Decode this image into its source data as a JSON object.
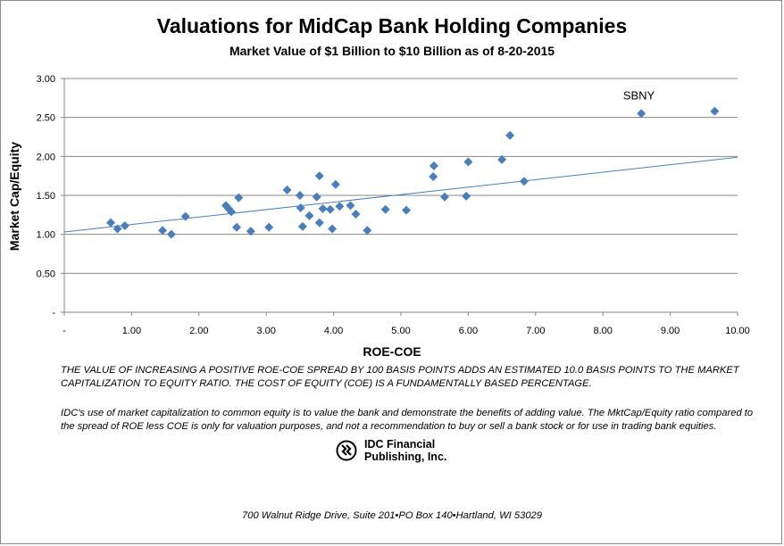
{
  "header": {
    "title": "Valuations for MidCap Bank Holding Companies",
    "subtitle": "Market Value of $1 Billion to $10 Billion as of 8-20-2015"
  },
  "notes": {
    "note1": "THE VALUE OF INCREASING A POSITIVE ROE-COE SPREAD BY 100 BASIS POINTS ADDS AN ESTIMATED 10.0 BASIS POINTS TO THE MARKET CAPITALIZATION TO EQUITY RATIO.  THE COST OF EQUITY (COE) IS A FUNDAMENTALLY BASED PERCENTAGE.",
    "note2": "IDC's use of market capitalization to common equity is to value the bank and demonstrate the benefits of adding value.  The MktCap/Equity ratio compared to the spread of ROE less COE is only for valuation purposes, and not a recommendation to buy or sell a bank stock or for use in trading bank equities."
  },
  "logo": {
    "line1": "IDC Financial",
    "line2": "Publishing, Inc."
  },
  "footer": {
    "address": "700 Walnut Ridge Drive, Suite 201•PO Box 140•Hartland, WI 53029"
  },
  "colors": {
    "marker": "#4a7ebb",
    "trendline": "#4a7ebb",
    "grid": "#868686",
    "axis_text": "#000000"
  },
  "chart_data": {
    "type": "scatter",
    "title": "Valuations for MidCap Bank Holding Companies",
    "subtitle": "Market Value of $1 Billion to $10 Billion as of 8-20-2015",
    "xlabel": "ROE-COE",
    "ylabel": "Market Cap/Equity",
    "xlim": [
      0,
      10
    ],
    "ylim": [
      0,
      3
    ],
    "x_ticks": [
      "-",
      "1.00",
      "2.00",
      "3.00",
      "4.00",
      "5.00",
      "6.00",
      "7.00",
      "8.00",
      "9.00",
      "10.00"
    ],
    "y_ticks": [
      "-",
      "0.50",
      "1.00",
      "1.50",
      "2.00",
      "2.50",
      "3.00"
    ],
    "grid": "horizontal",
    "legend": "none",
    "points": [
      {
        "x": 0.69,
        "y": 1.15
      },
      {
        "x": 0.79,
        "y": 1.07
      },
      {
        "x": 0.9,
        "y": 1.11
      },
      {
        "x": 1.46,
        "y": 1.05
      },
      {
        "x": 1.59,
        "y": 1.0
      },
      {
        "x": 1.8,
        "y": 1.23
      },
      {
        "x": 2.4,
        "y": 1.37
      },
      {
        "x": 2.44,
        "y": 1.33
      },
      {
        "x": 2.48,
        "y": 1.29
      },
      {
        "x": 2.56,
        "y": 1.09
      },
      {
        "x": 2.59,
        "y": 1.47
      },
      {
        "x": 2.77,
        "y": 1.04
      },
      {
        "x": 3.04,
        "y": 1.09
      },
      {
        "x": 3.31,
        "y": 1.57
      },
      {
        "x": 3.5,
        "y": 1.5
      },
      {
        "x": 3.51,
        "y": 1.34
      },
      {
        "x": 3.54,
        "y": 1.1
      },
      {
        "x": 3.64,
        "y": 1.24
      },
      {
        "x": 3.75,
        "y": 1.48
      },
      {
        "x": 3.79,
        "y": 1.75
      },
      {
        "x": 3.79,
        "y": 1.15
      },
      {
        "x": 3.84,
        "y": 1.33
      },
      {
        "x": 3.95,
        "y": 1.32
      },
      {
        "x": 3.98,
        "y": 1.07
      },
      {
        "x": 4.03,
        "y": 1.64
      },
      {
        "x": 4.09,
        "y": 1.36
      },
      {
        "x": 4.25,
        "y": 1.37
      },
      {
        "x": 4.33,
        "y": 1.26
      },
      {
        "x": 4.5,
        "y": 1.05
      },
      {
        "x": 4.77,
        "y": 1.32
      },
      {
        "x": 5.08,
        "y": 1.31
      },
      {
        "x": 5.48,
        "y": 1.74
      },
      {
        "x": 5.49,
        "y": 1.88
      },
      {
        "x": 5.65,
        "y": 1.48
      },
      {
        "x": 5.97,
        "y": 1.49
      },
      {
        "x": 6.0,
        "y": 1.93
      },
      {
        "x": 6.5,
        "y": 1.96
      },
      {
        "x": 6.62,
        "y": 2.27
      },
      {
        "x": 6.83,
        "y": 1.68
      },
      {
        "x": 8.57,
        "y": 2.55
      },
      {
        "x": 9.66,
        "y": 2.58
      }
    ],
    "trendline": {
      "x": [
        0,
        10
      ],
      "y": [
        1.03,
        1.99
      ]
    },
    "annotations": [
      {
        "text": "SBNY",
        "x": 8.3,
        "y": 2.73
      }
    ]
  }
}
